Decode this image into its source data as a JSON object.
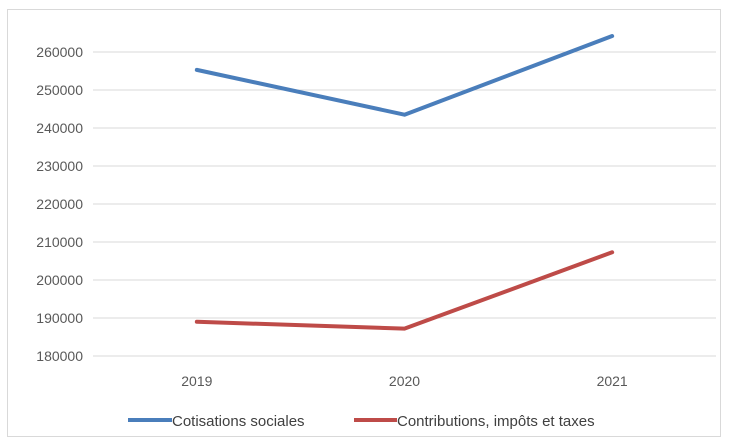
{
  "chart_data": {
    "type": "line",
    "categories": [
      "2019",
      "2020",
      "2021"
    ],
    "series": [
      {
        "name": "Cotisations sociales",
        "values": [
          255300,
          243500,
          264200
        ],
        "color": "#4a7ebb"
      },
      {
        "name": "Contributions, impôts et taxes",
        "values": [
          189000,
          187200,
          207300
        ],
        "color": "#be4b48"
      }
    ],
    "ylim": [
      180000,
      260000
    ],
    "yticks": [
      "180000",
      "190000",
      "200000",
      "210000",
      "220000",
      "230000",
      "240000",
      "250000",
      "260000"
    ],
    "grid": true,
    "legend": "bottom"
  }
}
